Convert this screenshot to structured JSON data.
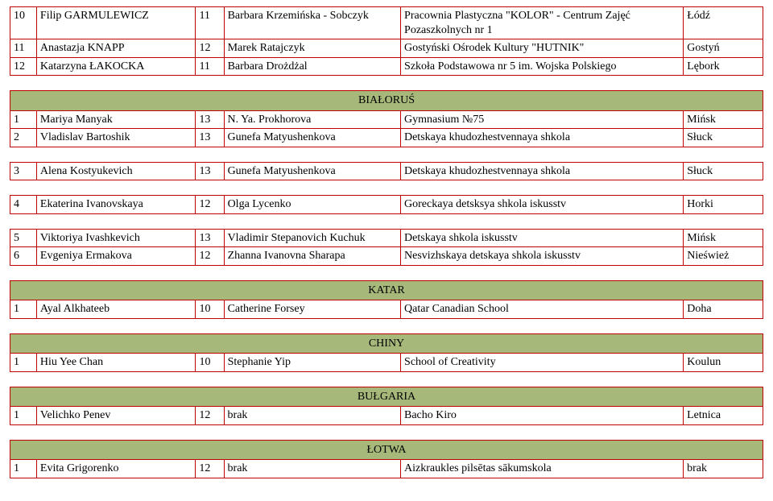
{
  "top_rows": [
    {
      "n": "10",
      "name": "Filip GARMULEWICZ",
      "age": "11",
      "teacher": "Barbara Krzemińska - Sobczyk",
      "school": "Pracownia Plastyczna \"KOLOR\" - Centrum Zajęć Pozaszkolnych nr 1",
      "city": "Łódź"
    },
    {
      "n": "11",
      "name": "Anastazja KNAPP",
      "age": "12",
      "teacher": "Marek Ratajczyk",
      "school": "Gostyński Ośrodek Kultury \"HUTNIK\"",
      "city": "Gostyń"
    },
    {
      "n": "12",
      "name": "Katarzyna ŁAKOCKA",
      "age": "11",
      "teacher": "Barbara Drożdżal",
      "school": "Szkoła Podstawowa nr 5 im. Wojska Polskiego",
      "city": "Lębork"
    }
  ],
  "sections": [
    {
      "title": "BIAŁORUŚ",
      "rows": [
        {
          "n": "1",
          "name": "Mariya Manyak",
          "age": "13",
          "teacher": "N. Ya. Prokhorova",
          "school": "Gymnasium №75",
          "city": "Mińsk"
        },
        {
          "n": "2",
          "name": "Vladislav Bartoshik",
          "age": "13",
          "teacher": "Gunefa Matyushenkova",
          "school": "Detskaya khudozhestvennaya shkola",
          "city": "Słuck"
        },
        {
          "n": "3",
          "name": "Alena Kostyukevich",
          "age": "13",
          "teacher": "Gunefa Matyushenkova",
          "school": "Detskaya khudozhestvennaya shkola",
          "city": "Słuck"
        },
        {
          "n": "4",
          "name": "Ekaterina Ivanovskaya",
          "age": "12",
          "teacher": "Olga Lycenko",
          "school": "Goreckaya detsksya shkola iskusstv",
          "city": "Horki"
        },
        {
          "n": "5",
          "name": "Viktoriya Ivashkevich",
          "age": "13",
          "teacher": "Vladimir Stepanovich Kuchuk",
          "school": "Detskaya shkola iskusstv",
          "city": "Mińsk"
        },
        {
          "n": "6",
          "name": "Evgeniya Ermakova",
          "age": "12",
          "teacher": "Zhanna Ivanovna Sharapa",
          "school": "Nesvizhskaya detskaya shkola iskusstv",
          "city": "Nieśwież"
        }
      ],
      "row_gaps_after": [
        1,
        2,
        3
      ]
    },
    {
      "title": "KATAR",
      "rows": [
        {
          "n": "1",
          "name": "Ayal Alkhateeb",
          "age": "10",
          "teacher": "Catherine Forsey",
          "school": "Qatar Canadian School",
          "city": "Doha"
        }
      ],
      "row_gaps_after": []
    },
    {
      "title": "CHINY",
      "rows": [
        {
          "n": "1",
          "name": "Hiu Yee Chan",
          "age": "10",
          "teacher": "Stephanie Yip",
          "school": "School of Creativity",
          "city": "Koulun"
        }
      ],
      "row_gaps_after": []
    },
    {
      "title": "BUŁGARIA",
      "rows": [
        {
          "n": "1",
          "name": "Velichko Penev",
          "age": "12",
          "teacher": "brak",
          "school": "Bacho Kiro",
          "city": "Letnica"
        }
      ],
      "row_gaps_after": []
    },
    {
      "title": "ŁOTWA",
      "rows": [
        {
          "n": "1",
          "name": "Evita Grigorenko",
          "age": "12",
          "teacher": "brak",
          "school": "Aizkraukles pilsētas sākumskola",
          "city": "brak"
        }
      ],
      "row_gaps_after": []
    }
  ],
  "style": {
    "border_color": "#c00000",
    "header_bg": "#a6b87a",
    "font_family": "Times New Roman",
    "font_size_pt": 11
  }
}
